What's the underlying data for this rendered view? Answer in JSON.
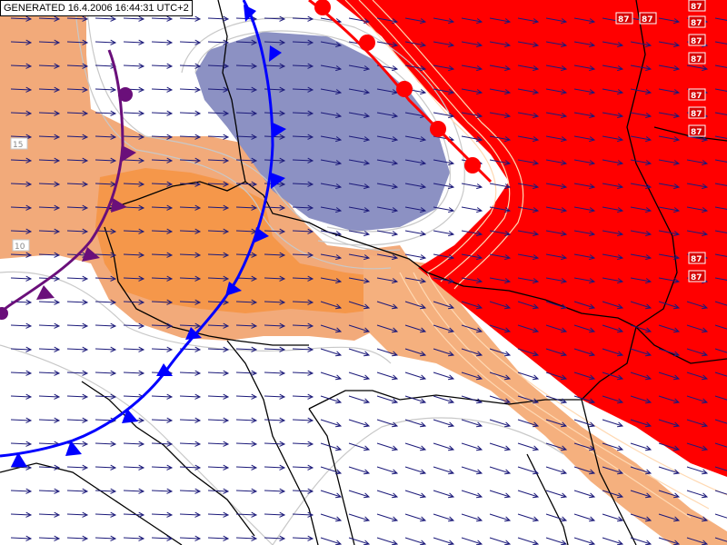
{
  "header": {
    "generated_stamp": "GENERATED 16.4.2006 16:44:31 UTC+2"
  },
  "map": {
    "colors": {
      "background": "#ffffff",
      "warm_light": "#f2aa7a",
      "warm_medium": "#f5974a",
      "hot": "#ff0000",
      "cold_pool": "#8c91c3",
      "isoline": "#c8c8c8",
      "isoline_warm": "#ffd9b3",
      "border": "#000000",
      "wind_arrow": "#1c1a7a",
      "cold_front": "#0000ff",
      "warm_front": "#ff0000",
      "occluded_front": "#6a0f7a"
    },
    "fronts": [
      {
        "name": "cold-front",
        "type": "cold",
        "color": "#0000ff"
      },
      {
        "name": "warm-front",
        "type": "warm",
        "color": "#ff0000"
      },
      {
        "name": "occluded-front",
        "type": "occluded",
        "color": "#6a0f7a"
      }
    ],
    "isoline_labels": {
      "left_middle": "10",
      "left_upper": "15",
      "right_edge": [
        "87",
        "87",
        "87",
        "87",
        "87",
        "87",
        "87",
        "87",
        "87"
      ],
      "top_right": [
        "87",
        "87"
      ]
    }
  }
}
